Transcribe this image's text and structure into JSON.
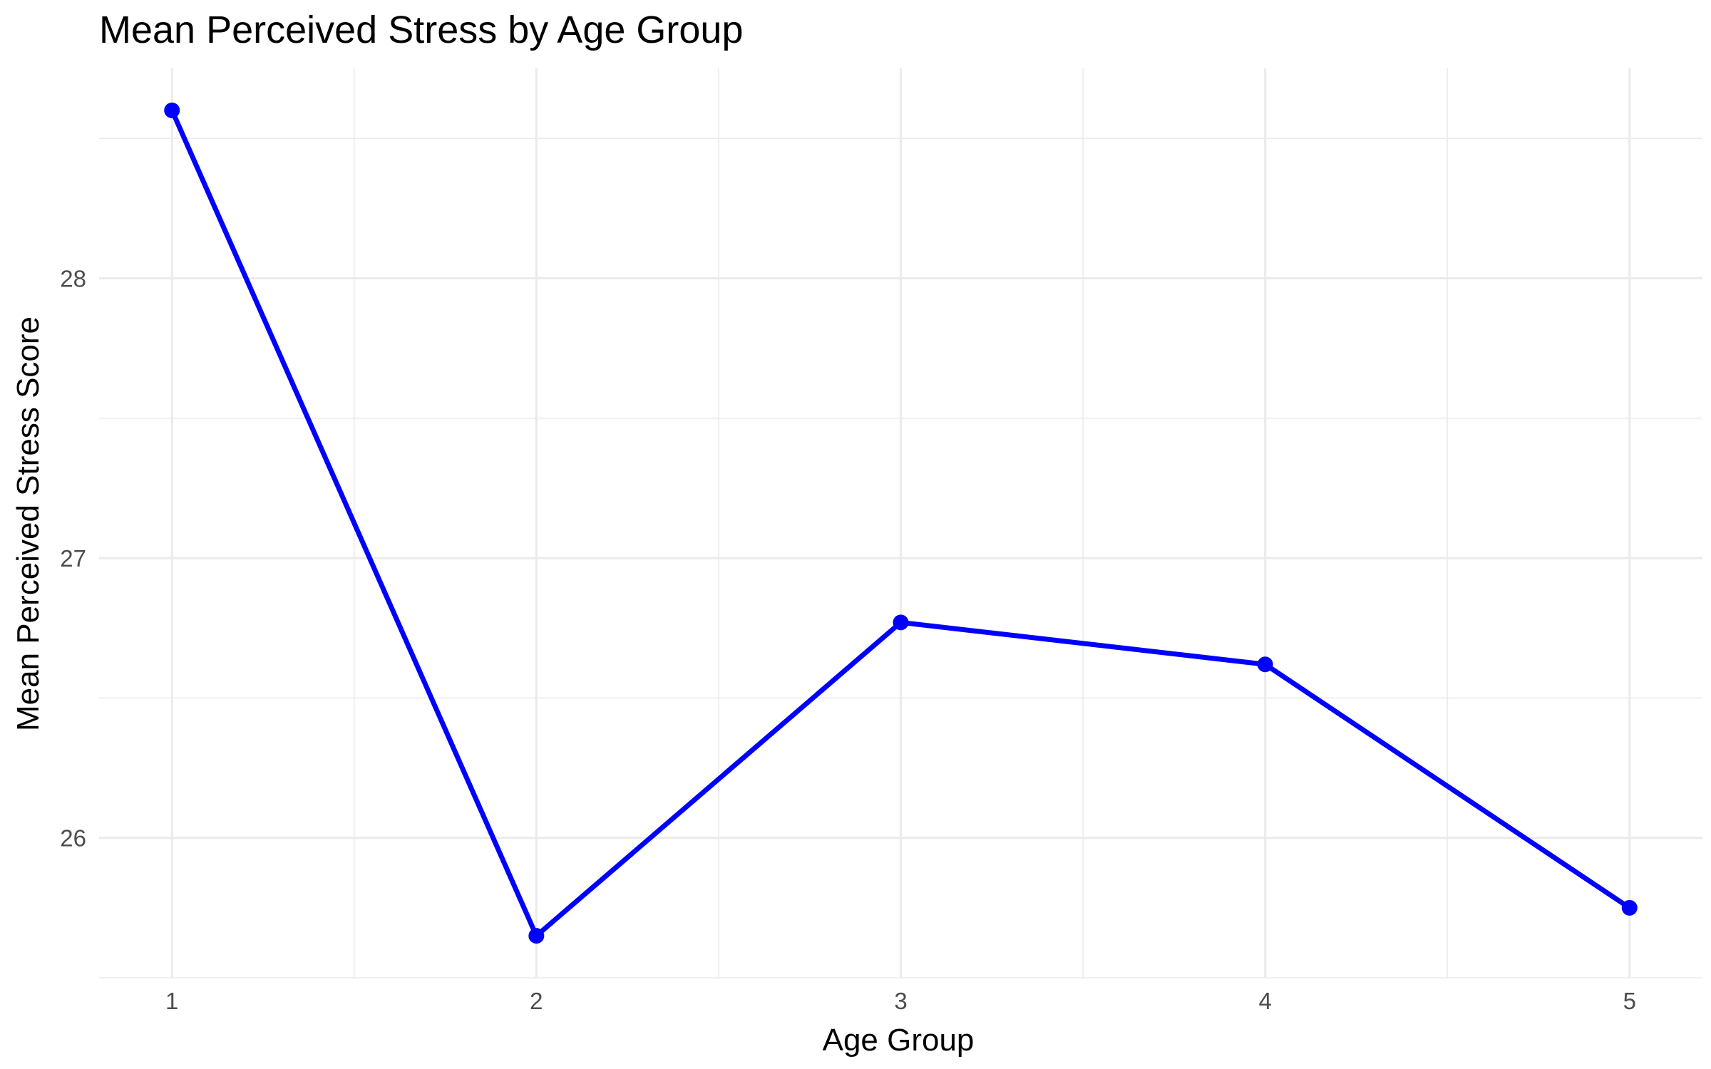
{
  "chart_data": {
    "type": "line",
    "title": "Mean Perceived Stress by Age Group",
    "xlabel": "Age Group",
    "ylabel": "Mean Perceived Stress Score",
    "x": [
      1,
      2,
      3,
      4,
      5
    ],
    "x_tick_labels": [
      "1",
      "2",
      "3",
      "4",
      "5"
    ],
    "y_ticks": [
      26,
      27,
      28
    ],
    "y_tick_labels": [
      "26",
      "27",
      "28"
    ],
    "xlim": [
      0.8,
      5.2
    ],
    "ylim": [
      25.5,
      28.75
    ],
    "series": [
      {
        "values": [
          28.6,
          25.65,
          26.77,
          26.62,
          25.75
        ],
        "color": "#0000ff"
      }
    ],
    "grid": true,
    "legend": "none"
  }
}
